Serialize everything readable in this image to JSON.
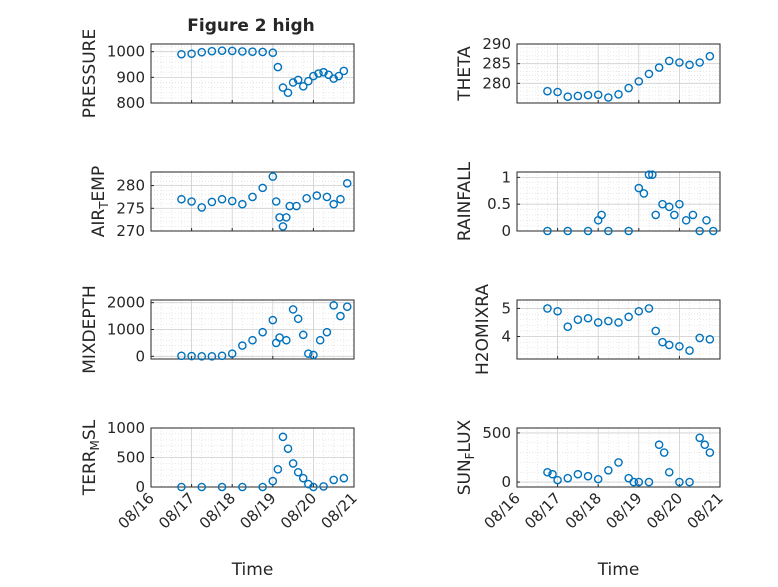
{
  "figure": {
    "title": "Figure 2 high",
    "colors": {
      "marker": "#0072BD",
      "axis": "#262626",
      "grid": "#d9d9d9",
      "background": "#ffffff"
    }
  },
  "chart_data": [
    {
      "type": "scatter",
      "marker": "circle-open",
      "ylabel": "PRESSURE",
      "ylabel_sub": "",
      "ylabel_tail": "",
      "ylim": [
        800,
        1030
      ],
      "yticks": [
        800,
        900,
        1000
      ],
      "yticklabels": [
        "800",
        "900",
        "1000"
      ],
      "xlabel": "",
      "xticklabels": [],
      "grid": true,
      "minor_grid": true,
      "x": [
        "08/16 18:00",
        "08/17 00:00",
        "08/17 06:00",
        "08/17 12:00",
        "08/17 18:00",
        "08/18 00:00",
        "08/18 06:00",
        "08/18 12:00",
        "08/18 18:00",
        "08/19 00:00",
        "08/19 03:00",
        "08/19 06:00",
        "08/19 09:00",
        "08/19 12:00",
        "08/19 15:00",
        "08/19 18:00",
        "08/19 21:00",
        "08/20 00:00",
        "08/20 03:00",
        "08/20 06:00",
        "08/20 09:00",
        "08/20 12:00",
        "08/20 15:00",
        "08/20 18:00"
      ],
      "y": [
        990,
        992,
        998,
        1002,
        1004,
        1003,
        1001,
        1000,
        999,
        996,
        940,
        860,
        840,
        880,
        890,
        865,
        885,
        905,
        915,
        920,
        910,
        895,
        905,
        925
      ]
    },
    {
      "type": "scatter",
      "marker": "circle-open",
      "ylabel": "THETA",
      "ylabel_sub": "",
      "ylabel_tail": "",
      "ylim": [
        275,
        290
      ],
      "yticks": [
        280,
        285,
        290
      ],
      "yticklabels": [
        "280",
        "285",
        "290"
      ],
      "xlabel": "",
      "xticklabels": [],
      "grid": true,
      "minor_grid": true,
      "x": [
        "08/16 18:00",
        "08/17 00:00",
        "08/17 06:00",
        "08/17 12:00",
        "08/17 18:00",
        "08/18 00:00",
        "08/18 06:00",
        "08/18 12:00",
        "08/18 18:00",
        "08/19 00:00",
        "08/19 06:00",
        "08/19 12:00",
        "08/19 18:00",
        "08/20 00:00",
        "08/20 06:00",
        "08/20 12:00",
        "08/20 18:00"
      ],
      "y": [
        278,
        277.8,
        276.6,
        276.8,
        277.0,
        277.1,
        276.4,
        277.2,
        278.8,
        280.5,
        282.4,
        284.0,
        285.7,
        285.3,
        284.7,
        285.3,
        286.9
      ]
    },
    {
      "type": "scatter",
      "marker": "circle-open",
      "ylabel": "AIR",
      "ylabel_sub": "T",
      "ylabel_tail": "EMP",
      "ylim": [
        270,
        283
      ],
      "yticks": [
        270,
        275,
        280
      ],
      "yticklabels": [
        "270",
        "275",
        "280"
      ],
      "xlabel": "",
      "xticklabels": [],
      "grid": true,
      "minor_grid": true,
      "x": [
        "08/16 18:00",
        "08/17 00:00",
        "08/17 06:00",
        "08/17 12:00",
        "08/17 18:00",
        "08/18 00:00",
        "08/18 06:00",
        "08/18 12:00",
        "08/18 18:00",
        "08/19 00:00",
        "08/19 02:00",
        "08/19 04:00",
        "08/19 06:00",
        "08/19 08:00",
        "08/19 10:00",
        "08/19 14:00",
        "08/19 20:00",
        "08/20 02:00",
        "08/20 08:00",
        "08/20 12:00",
        "08/20 16:00",
        "08/20 20:00"
      ],
      "y": [
        277,
        276.5,
        275.2,
        276.4,
        277.0,
        276.6,
        275.9,
        277.5,
        279.5,
        282.0,
        276.5,
        273.0,
        271.0,
        273.0,
        275.5,
        275.5,
        277.2,
        277.8,
        277.5,
        275.9,
        277.0,
        280.5
      ]
    },
    {
      "type": "scatter",
      "marker": "circle-open",
      "ylabel": "RAINFALL",
      "ylabel_sub": "",
      "ylabel_tail": "",
      "ylim": [
        0,
        1.1
      ],
      "yticks": [
        0,
        0.5,
        1
      ],
      "yticklabels": [
        "0",
        "0.5",
        "1"
      ],
      "xlabel": "",
      "xticklabels": [],
      "grid": true,
      "minor_grid": true,
      "x": [
        "08/16 18:00",
        "08/17 06:00",
        "08/17 18:00",
        "08/18 06:00",
        "08/18 18:00",
        "08/18 00:00",
        "08/18 02:00",
        "08/19 00:00",
        "08/19 03:00",
        "08/19 06:00",
        "08/19 08:00",
        "08/19 10:00",
        "08/19 14:00",
        "08/19 18:00",
        "08/19 21:00",
        "08/20 00:00",
        "08/20 04:00",
        "08/20 08:00",
        "08/20 12:00",
        "08/20 16:00",
        "08/20 20:00"
      ],
      "y": [
        0,
        0,
        0,
        0,
        0,
        0.2,
        0.3,
        0.8,
        0.7,
        1.05,
        1.05,
        0.3,
        0.5,
        0.45,
        0.3,
        0.5,
        0.2,
        0.3,
        0,
        0.2,
        0
      ]
    },
    {
      "type": "scatter",
      "marker": "circle-open",
      "ylabel": "MIXDEPTH",
      "ylabel_sub": "",
      "ylabel_tail": "",
      "ylim": [
        -100,
        2100
      ],
      "yticks": [
        0,
        1000,
        2000
      ],
      "yticklabels": [
        "0",
        "1000",
        "2000"
      ],
      "xlabel": "",
      "xticklabels": [],
      "grid": true,
      "minor_grid": true,
      "x": [
        "08/16 18:00",
        "08/17 00:00",
        "08/17 06:00",
        "08/17 12:00",
        "08/17 18:00",
        "08/18 00:00",
        "08/18 06:00",
        "08/18 12:00",
        "08/18 18:00",
        "08/19 00:00",
        "08/19 02:00",
        "08/19 04:00",
        "08/19 08:00",
        "08/19 12:00",
        "08/19 15:00",
        "08/19 18:00",
        "08/19 21:00",
        "08/20 00:00",
        "08/20 04:00",
        "08/20 08:00",
        "08/20 12:00",
        "08/20 16:00",
        "08/20 20:00"
      ],
      "y": [
        20,
        10,
        0,
        0,
        20,
        100,
        400,
        600,
        900,
        1350,
        500,
        700,
        600,
        1750,
        1400,
        800,
        100,
        50,
        600,
        900,
        1900,
        1500,
        1850
      ]
    },
    {
      "type": "scatter",
      "marker": "circle-open",
      "ylabel": "H2OMIXRA",
      "ylabel_sub": "",
      "ylabel_tail": "",
      "ylim": [
        3.2,
        5.3
      ],
      "yticks": [
        4,
        5
      ],
      "yticklabels": [
        "4",
        "5"
      ],
      "xlabel": "",
      "xticklabels": [],
      "grid": true,
      "minor_grid": true,
      "x": [
        "08/16 18:00",
        "08/17 00:00",
        "08/17 06:00",
        "08/17 12:00",
        "08/17 18:00",
        "08/18 00:00",
        "08/18 06:00",
        "08/18 12:00",
        "08/18 18:00",
        "08/19 00:00",
        "08/19 06:00",
        "08/19 10:00",
        "08/19 14:00",
        "08/19 18:00",
        "08/20 00:00",
        "08/20 06:00",
        "08/20 12:00",
        "08/20 18:00"
      ],
      "y": [
        5.0,
        4.9,
        4.35,
        4.6,
        4.65,
        4.5,
        4.55,
        4.5,
        4.7,
        4.9,
        5.0,
        4.2,
        3.8,
        3.7,
        3.65,
        3.5,
        3.95,
        3.9
      ]
    },
    {
      "type": "scatter",
      "marker": "circle-open",
      "ylabel": "TERR",
      "ylabel_sub": "M",
      "ylabel_tail": "SL",
      "ylim": [
        0,
        1000
      ],
      "yticks": [
        0,
        500,
        1000
      ],
      "yticklabels": [
        "0",
        "500",
        "1000"
      ],
      "xlabel": "Time",
      "xticklabels": [
        "08/16",
        "08/17",
        "08/18",
        "08/19",
        "08/20",
        "08/21"
      ],
      "grid": true,
      "minor_grid": true,
      "x": [
        "08/16 18:00",
        "08/17 06:00",
        "08/17 18:00",
        "08/18 06:00",
        "08/18 18:00",
        "08/19 00:00",
        "08/19 03:00",
        "08/19 06:00",
        "08/19 09:00",
        "08/19 12:00",
        "08/19 15:00",
        "08/19 18:00",
        "08/19 21:00",
        "08/20 00:00",
        "08/20 06:00",
        "08/20 12:00",
        "08/20 18:00"
      ],
      "y": [
        0,
        0,
        0,
        0,
        0,
        100,
        300,
        850,
        650,
        400,
        250,
        150,
        50,
        0,
        10,
        120,
        150
      ]
    },
    {
      "type": "scatter",
      "marker": "circle-open",
      "ylabel": "SUN",
      "ylabel_sub": "F",
      "ylabel_tail": "LUX",
      "ylim": [
        -50,
        550
      ],
      "yticks": [
        0,
        500
      ],
      "yticklabels": [
        "0",
        "500"
      ],
      "xlabel": "Time",
      "xticklabels": [
        "08/16",
        "08/17",
        "08/18",
        "08/19",
        "08/20",
        "08/21"
      ],
      "grid": true,
      "minor_grid": true,
      "x": [
        "08/16 18:00",
        "08/16 21:00",
        "08/17 00:00",
        "08/17 06:00",
        "08/17 12:00",
        "08/17 18:00",
        "08/18 00:00",
        "08/18 06:00",
        "08/18 12:00",
        "08/18 18:00",
        "08/18 21:00",
        "08/19 00:00",
        "08/19 06:00",
        "08/19 12:00",
        "08/19 15:00",
        "08/19 18:00",
        "08/20 00:00",
        "08/20 06:00",
        "08/20 12:00",
        "08/20 15:00",
        "08/20 18:00"
      ],
      "y": [
        100,
        80,
        20,
        40,
        80,
        60,
        30,
        120,
        200,
        40,
        0,
        0,
        0,
        380,
        300,
        100,
        0,
        0,
        450,
        380,
        300
      ]
    }
  ]
}
